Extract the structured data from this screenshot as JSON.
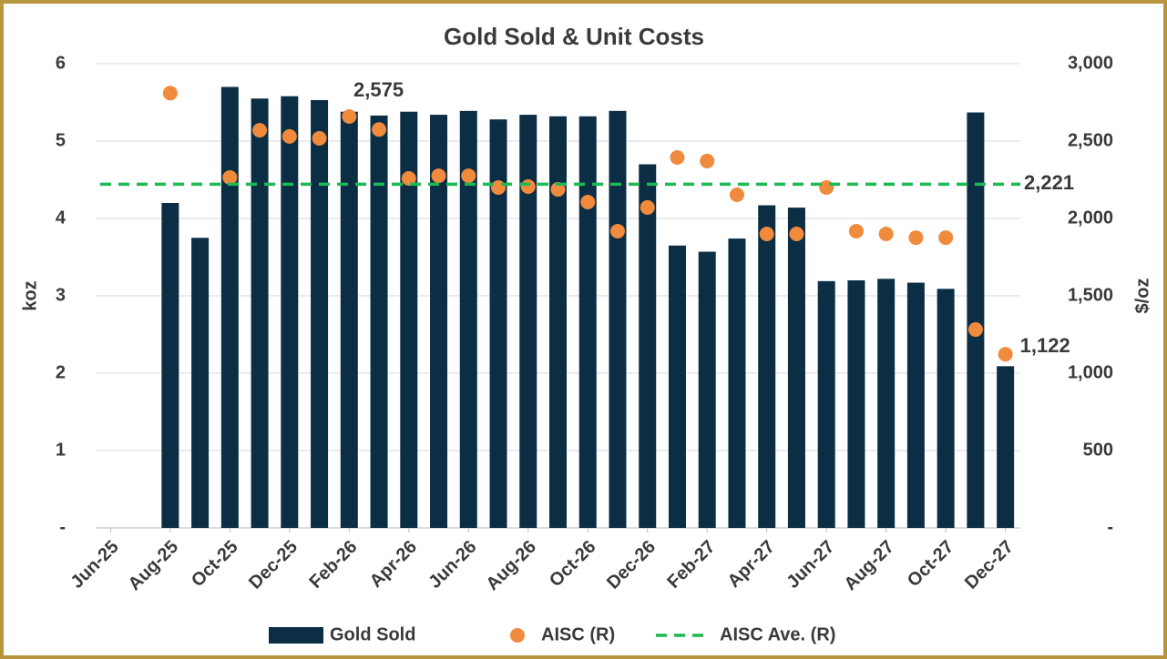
{
  "chart_data": {
    "type": "bar",
    "title": "Gold Sold & Unit Costs",
    "categories": [
      "Jun-25",
      null,
      "Aug-25",
      null,
      "Oct-25",
      null,
      "Dec-25",
      null,
      "Feb-26",
      null,
      "Apr-26",
      null,
      "Jun-26",
      null,
      "Aug-26",
      null,
      "Oct-26",
      null,
      "Dec-26",
      null,
      "Feb-27",
      null,
      "Apr-27",
      null,
      "Jun-27",
      null,
      "Aug-27",
      null,
      "Oct-27",
      null,
      "Dec-27"
    ],
    "series": [
      {
        "name": "Gold Sold",
        "type": "bar",
        "color": "#0b2e45",
        "axis": "y",
        "values": [
          null,
          null,
          4.2,
          3.75,
          5.7,
          5.55,
          5.58,
          5.53,
          5.38,
          5.33,
          5.38,
          5.34,
          5.39,
          5.28,
          5.34,
          5.32,
          5.32,
          5.39,
          4.7,
          3.65,
          3.57,
          3.74,
          4.17,
          4.14,
          3.19,
          3.2,
          3.22,
          3.17,
          3.09,
          5.37,
          2.09
        ]
      },
      {
        "name": "AISC (R)",
        "type": "scatter",
        "color": "#f08a3c",
        "axis": "y2",
        "values": [
          null,
          null,
          2810,
          null,
          2265,
          2570,
          2530,
          2518,
          2659,
          2575,
          2259,
          2276,
          2276,
          2200,
          2206,
          2188,
          2106,
          1918,
          2071,
          2394,
          2371,
          2153,
          1900,
          1900,
          2200,
          1918,
          1900,
          1876,
          1876,
          1282,
          1122
        ],
        "value_labels": [
          null,
          null,
          null,
          null,
          null,
          null,
          null,
          null,
          null,
          "2,575",
          null,
          null,
          null,
          null,
          null,
          null,
          null,
          null,
          null,
          null,
          null,
          null,
          null,
          null,
          null,
          null,
          null,
          null,
          null,
          null,
          "1,122"
        ]
      }
    ],
    "average": {
      "name": "AISC Ave. (R)",
      "value": 2221,
      "label": "2,221",
      "color": "#1db954",
      "axis": "y2"
    },
    "ylabel": "koz",
    "y2label": "$/oz",
    "ylim": [
      0,
      6
    ],
    "yticks": [
      {
        "value": 0,
        "label": "-"
      },
      1,
      2,
      3,
      4,
      5,
      6
    ],
    "y2lim": [
      0,
      3000
    ],
    "y2ticks": [
      {
        "value": 0,
        "label": "-"
      },
      500,
      {
        "value": 1000,
        "label": "1,000"
      },
      {
        "value": 1500,
        "label": "1,500"
      },
      {
        "value": 2000,
        "label": "2,000"
      },
      {
        "value": 2500,
        "label": "2,500"
      },
      {
        "value": 3000,
        "label": "3,000"
      }
    ],
    "grid": true
  }
}
